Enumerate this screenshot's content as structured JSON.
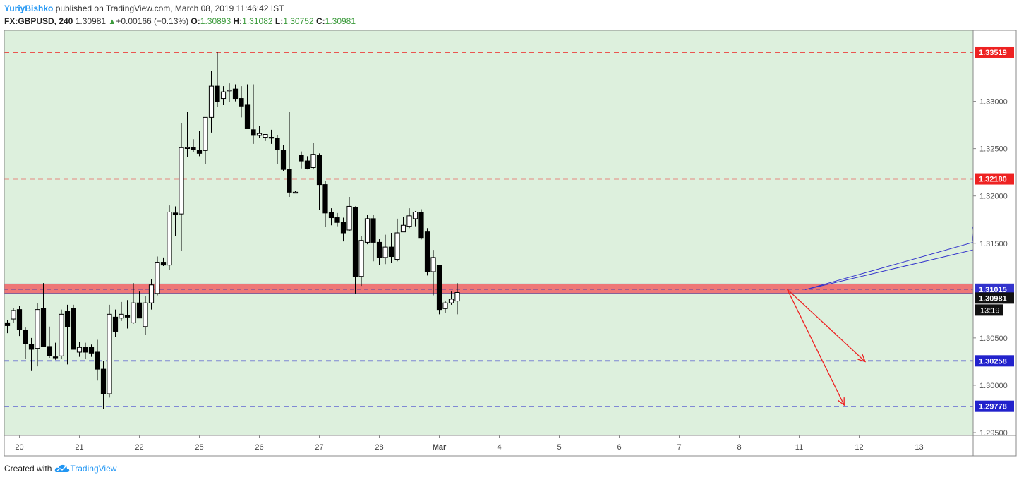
{
  "header": {
    "author": "YuriyBishko",
    "published_text": "published on TradingView.com, March 08, 2019 11:46:42 IST",
    "symbol": "FX:GBPUSD, 240",
    "price": "1.30981",
    "change_arrow": "▲",
    "change": "+0.00166 (+0.13%)",
    "o_label": "O:",
    "o_value": "1.30893",
    "h_label": "H:",
    "h_value": "1.31082",
    "l_label": "L:",
    "l_value": "1.30752",
    "c_label": "C:",
    "c_value": "1.30981"
  },
  "footer": {
    "created_with": "Created with",
    "brand": "TradingView"
  },
  "colors": {
    "plot_bg": "#ddf0dd",
    "resistance": "#ee2222",
    "support": "#2222cc",
    "zone_fill": "#ee7777",
    "forecast": "#ee2222",
    "callout": "#3333cc"
  },
  "chart_data": {
    "type": "candlestick",
    "ylim": [
      1.2947,
      1.3375
    ],
    "y_ticks": [
      "1.29500",
      "1.30000",
      "1.30500",
      "1.31500",
      "1.32000",
      "1.32500",
      "1.33000"
    ],
    "x_ticks": [
      "20",
      "21",
      "22",
      "25",
      "26",
      "27",
      "28",
      "Mar",
      "4",
      "5",
      "6",
      "7",
      "8",
      "11",
      "12",
      "13"
    ],
    "x_tick_index": [
      2,
      12,
      22,
      32,
      42,
      52,
      62,
      72,
      82,
      92,
      102,
      112,
      122,
      132,
      142,
      152
    ],
    "levels": [
      {
        "value": 1.33519,
        "label": "1.33519",
        "kind": "resistance"
      },
      {
        "value": 1.3218,
        "label": "1.32180",
        "kind": "resistance"
      },
      {
        "value": 1.30258,
        "label": "1.30258",
        "kind": "support"
      },
      {
        "value": 1.29778,
        "label": "1.29778",
        "kind": "support"
      }
    ],
    "zone": {
      "top": 1.3107,
      "bottom": 1.3097,
      "mid": 1.31015,
      "label": "1.31015"
    },
    "last_price": {
      "value": 1.30981,
      "label": "1.30981",
      "countdown": "13:19"
    },
    "candles": [
      [
        1.3066,
        1.3069,
        1.3055,
        1.3063
      ],
      [
        1.307,
        1.3082,
        1.3066,
        1.3079
      ],
      [
        1.308,
        1.3084,
        1.3052,
        1.3059
      ],
      [
        1.3058,
        1.3061,
        1.3028,
        1.3044
      ],
      [
        1.3043,
        1.305,
        1.3015,
        1.3038
      ],
      [
        1.3039,
        1.3087,
        1.302,
        1.308
      ],
      [
        1.3081,
        1.3108,
        1.3041,
        1.3041
      ],
      [
        1.3041,
        1.3062,
        1.3029,
        1.3031
      ],
      [
        1.303,
        1.3045,
        1.3027,
        1.3029
      ],
      [
        1.3031,
        1.308,
        1.3028,
        1.3075
      ],
      [
        1.3078,
        1.3085,
        1.3022,
        1.3062
      ],
      [
        1.3081,
        1.3085,
        1.3038,
        1.3038
      ],
      [
        1.3035,
        1.3046,
        1.303,
        1.304
      ],
      [
        1.304,
        1.3045,
        1.3028,
        1.3035
      ],
      [
        1.304,
        1.3043,
        1.303,
        1.3034
      ],
      [
        1.3035,
        1.3048,
        1.3005,
        1.3017
      ],
      [
        1.3017,
        1.3026,
        1.2975,
        1.2991
      ],
      [
        1.2991,
        1.3085,
        1.2987,
        1.3075
      ],
      [
        1.3072,
        1.308,
        1.3051,
        1.3057
      ],
      [
        1.3071,
        1.3088,
        1.3068,
        1.3075
      ],
      [
        1.3074,
        1.309,
        1.306,
        1.3072
      ],
      [
        1.3066,
        1.3108,
        1.3065,
        1.3087
      ],
      [
        1.3087,
        1.3099,
        1.3071,
        1.3071
      ],
      [
        1.3062,
        1.3094,
        1.3053,
        1.3087
      ],
      [
        1.3087,
        1.3112,
        1.308,
        1.3106
      ],
      [
        1.3097,
        1.3136,
        1.3095,
        1.313
      ],
      [
        1.313,
        1.3135,
        1.3126,
        1.3127
      ],
      [
        1.3127,
        1.319,
        1.3122,
        1.3183
      ],
      [
        1.3182,
        1.3189,
        1.3158,
        1.318
      ],
      [
        1.3181,
        1.3277,
        1.3142,
        1.3251
      ],
      [
        1.3251,
        1.3289,
        1.3241,
        1.3251
      ],
      [
        1.3251,
        1.326,
        1.3246,
        1.3249
      ],
      [
        1.3248,
        1.3269,
        1.3242,
        1.3245
      ],
      [
        1.3248,
        1.3283,
        1.3234,
        1.3283
      ],
      [
        1.3283,
        1.3332,
        1.3267,
        1.3316
      ],
      [
        1.3316,
        1.3352,
        1.3294,
        1.33
      ],
      [
        1.3303,
        1.3316,
        1.3296,
        1.331
      ],
      [
        1.3311,
        1.3319,
        1.3299,
        1.3312
      ],
      [
        1.3313,
        1.3318,
        1.33,
        1.3303
      ],
      [
        1.3303,
        1.3316,
        1.3283,
        1.3295
      ],
      [
        1.3296,
        1.3318,
        1.3275,
        1.3271
      ],
      [
        1.327,
        1.3318,
        1.3255,
        1.3264
      ],
      [
        1.3264,
        1.3274,
        1.3261,
        1.3266
      ],
      [
        1.3262,
        1.3265,
        1.3258,
        1.3265
      ],
      [
        1.3262,
        1.327,
        1.3255,
        1.3262
      ],
      [
        1.3261,
        1.3264,
        1.3234,
        1.3249
      ],
      [
        1.3248,
        1.3254,
        1.3226,
        1.3228
      ],
      [
        1.3228,
        1.3289,
        1.3199,
        1.3204
      ],
      [
        1.3203,
        1.3205,
        1.3204,
        1.3204
      ],
      [
        1.3243,
        1.3247,
        1.3229,
        1.3237
      ],
      [
        1.3237,
        1.3242,
        1.3228,
        1.3229
      ],
      [
        1.323,
        1.3256,
        1.3228,
        1.3244
      ],
      [
        1.3243,
        1.3245,
        1.3185,
        1.3212
      ],
      [
        1.3212,
        1.3216,
        1.3167,
        1.3182
      ],
      [
        1.3183,
        1.3187,
        1.3169,
        1.3177
      ],
      [
        1.3177,
        1.3182,
        1.3168,
        1.3172
      ],
      [
        1.3172,
        1.3177,
        1.3152,
        1.3161
      ],
      [
        1.3164,
        1.3199,
        1.3163,
        1.3189
      ],
      [
        1.3188,
        1.3189,
        1.3097,
        1.3115
      ],
      [
        1.3115,
        1.3158,
        1.3105,
        1.3153
      ],
      [
        1.3151,
        1.318,
        1.3149,
        1.3176
      ],
      [
        1.3176,
        1.318,
        1.3131,
        1.3151
      ],
      [
        1.3151,
        1.3155,
        1.3127,
        1.3135
      ],
      [
        1.3135,
        1.3159,
        1.3128,
        1.3146
      ],
      [
        1.3146,
        1.3161,
        1.3129,
        1.3136
      ],
      [
        1.3133,
        1.3176,
        1.3131,
        1.3161
      ],
      [
        1.3162,
        1.3178,
        1.3163,
        1.3169
      ],
      [
        1.3168,
        1.3187,
        1.3166,
        1.3179
      ],
      [
        1.3176,
        1.3184,
        1.3168,
        1.3183
      ],
      [
        1.3183,
        1.3186,
        1.3154,
        1.3156
      ],
      [
        1.3162,
        1.3166,
        1.3116,
        1.312
      ],
      [
        1.312,
        1.3143,
        1.3095,
        1.3135
      ],
      [
        1.3127,
        1.3127,
        1.3075,
        1.308
      ],
      [
        1.3081,
        1.3089,
        1.3076,
        1.3087
      ],
      [
        1.3087,
        1.3099,
        1.3085,
        1.3091
      ],
      [
        1.3089,
        1.3108,
        1.3075,
        1.3098
      ]
    ]
  }
}
